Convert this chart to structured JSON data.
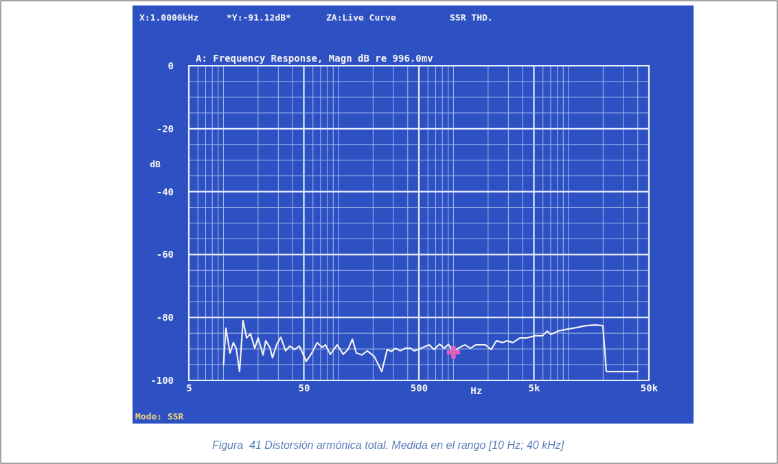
{
  "chart_data": {
    "type": "line",
    "title": "A: Frequency Response, Magn dB re 996.0mv",
    "xlabel": "Hz",
    "ylabel": "dB",
    "log": "x",
    "grid": true,
    "xlim": [
      5,
      50000
    ],
    "ylim": [
      -100,
      0
    ],
    "xticks": [
      5,
      {
        "value": 6,
        "label": null
      },
      {
        "value": 7,
        "label": null
      },
      {
        "value": 8,
        "label": null
      },
      {
        "value": 9,
        "label": null
      },
      {
        "value": 10,
        "label": null
      },
      {
        "value": 20,
        "label": null
      },
      {
        "value": 30,
        "label": null
      },
      {
        "value": 40,
        "label": null
      },
      50,
      {
        "value": 60,
        "label": null
      },
      {
        "value": 70,
        "label": null
      },
      {
        "value": 80,
        "label": null
      },
      {
        "value": 90,
        "label": null
      },
      {
        "value": 100,
        "label": null
      },
      {
        "value": 200,
        "label": null
      },
      {
        "value": 300,
        "label": null
      },
      {
        "value": 400,
        "label": null
      },
      500,
      {
        "value": 600,
        "label": null
      },
      {
        "value": 700,
        "label": null
      },
      {
        "value": 800,
        "label": null
      },
      {
        "value": 900,
        "label": null
      },
      {
        "value": 1000,
        "label": null
      },
      {
        "value": 2000,
        "label": null
      },
      {
        "value": 3000,
        "label": null
      },
      {
        "value": 4000,
        "label": null
      },
      {
        "value": 5000,
        "label": "5k"
      },
      {
        "value": 6000,
        "label": null
      },
      {
        "value": 7000,
        "label": null
      },
      {
        "value": 8000,
        "label": null
      },
      {
        "value": 9000,
        "label": null
      },
      {
        "value": 10000,
        "label": null
      },
      {
        "value": 20000,
        "label": null
      },
      {
        "value": 30000,
        "label": null
      },
      {
        "value": 40000,
        "label": null
      },
      {
        "value": 50000,
        "label": "50k"
      }
    ],
    "yticks": [
      0,
      {
        "value": -5,
        "label": null
      },
      {
        "value": -10,
        "label": null
      },
      {
        "value": -15,
        "label": null
      },
      -20,
      {
        "value": -25,
        "label": null
      },
      {
        "value": -30,
        "label": null
      },
      {
        "value": -35,
        "label": null
      },
      -40,
      {
        "value": -45,
        "label": null
      },
      {
        "value": -50,
        "label": null
      },
      {
        "value": -55,
        "label": null
      },
      -60,
      {
        "value": -65,
        "label": null
      },
      {
        "value": -70,
        "label": null
      },
      {
        "value": -75,
        "label": null
      },
      -80,
      {
        "value": -85,
        "label": null
      },
      {
        "value": -90,
        "label": null
      },
      {
        "value": -95,
        "label": null
      },
      -100
    ],
    "annotations": [
      "X:1.0000kHz",
      "*Y:-91.12dB*",
      "ZA:Live Curve",
      "SSR THD.",
      "Mode: SSR",
      "Figura  41 Distorsión armónica total. Medida en el rango [10 Hz; 40 kHz]"
    ],
    "series": [
      {
        "type": "line",
        "marker": "none",
        "color": "#f2f2f2",
        "x": [
          10,
          10.5,
          11.4,
          12.2,
          12.9,
          13.8,
          14.8,
          15.9,
          17.2,
          18.7,
          20,
          22.1,
          23.3,
          25.3,
          26.7,
          29.1,
          31.5,
          34.7,
          37.7,
          41.5,
          45.7,
          52.5,
          57.8,
          65.3,
          72,
          77,
          85,
          97.5,
          110,
          121,
          132,
          143,
          160,
          178,
          205,
          238,
          265,
          288,
          313,
          345,
          380,
          424,
          454,
          521,
          615,
          676,
          755,
          832,
          903,
          1000,
          1094,
          1256,
          1402,
          1566,
          1897,
          2119,
          2366,
          2675,
          2906,
          3288,
          3773,
          4329,
          5175,
          5940,
          6536,
          7003,
          8147,
          9880,
          11810,
          14120,
          17110,
          19910,
          21330,
          40670
        ],
        "values": [
          -95.2,
          -83.4,
          -91.3,
          -88,
          -89.8,
          -97.2,
          -81,
          -86.5,
          -85.2,
          -89.8,
          -86.5,
          -91.9,
          -87.4,
          -89.5,
          -92.8,
          -88.5,
          -86.3,
          -90.6,
          -89.1,
          -90.2,
          -89.1,
          -93.9,
          -91.7,
          -88,
          -89.5,
          -88.7,
          -91.7,
          -88.7,
          -91.7,
          -90.2,
          -86.9,
          -91.3,
          -91.9,
          -90.6,
          -92.4,
          -97.2,
          -90.2,
          -90.8,
          -89.8,
          -90.6,
          -89.8,
          -89.8,
          -90.6,
          -89.8,
          -88.7,
          -90.2,
          -88.5,
          -89.8,
          -88.5,
          -91.1,
          -89.8,
          -88.7,
          -89.8,
          -88.7,
          -88.7,
          -90.2,
          -87.4,
          -88,
          -87.4,
          -88,
          -86.5,
          -86.5,
          -85.8,
          -85.8,
          -84.3,
          -85.4,
          -84.3,
          -83.7,
          -83.2,
          -82.6,
          -82.4,
          -82.6,
          -97.2,
          -97.2
        ]
      },
      {
        "type": "scatter",
        "marker": "cross",
        "color": "#e060c0",
        "x": [
          1000
        ],
        "values": [
          -91.1
        ]
      }
    ]
  }
}
